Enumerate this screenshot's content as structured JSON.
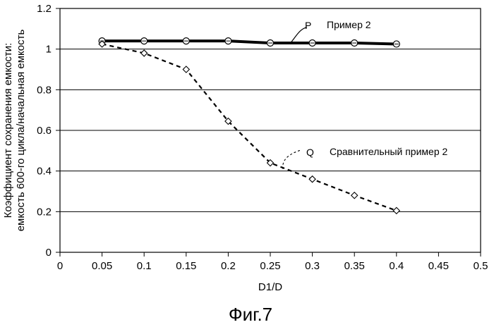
{
  "chart_data": {
    "type": "line",
    "xlabel": "D1/D",
    "ylabel_lines": [
      "Коэффициент сохранения емкости:",
      "емкость 600-го цикла/начальная емкость"
    ],
    "xlim": [
      0,
      0.5
    ],
    "ylim": [
      0,
      1.2
    ],
    "x_ticks": [
      "0",
      "0.05",
      "0.1",
      "0.15",
      "0.2",
      "0.25",
      "0.3",
      "0.35",
      "0.4",
      "0.45",
      "0.5"
    ],
    "y_ticks": [
      "0",
      "0.2",
      "0.4",
      "0.6",
      "0.8",
      "1",
      "1.2"
    ],
    "grid": "horizontal",
    "caption": "Фиг.7",
    "series": [
      {
        "name": "Пример 2",
        "tag": "P",
        "marker": "circle",
        "line_style": "solid-thick",
        "x": [
          0.05,
          0.1,
          0.15,
          0.2,
          0.25,
          0.3,
          0.35,
          0.4
        ],
        "y": [
          1.04,
          1.04,
          1.04,
          1.04,
          1.03,
          1.03,
          1.03,
          1.025
        ]
      },
      {
        "name": "Сравнительный пример 2",
        "tag": "Q",
        "marker": "diamond",
        "line_style": "dashed",
        "x": [
          0.05,
          0.1,
          0.15,
          0.2,
          0.25,
          0.3,
          0.35,
          0.4
        ],
        "y": [
          1.025,
          0.98,
          0.9,
          0.645,
          0.44,
          0.36,
          0.28,
          0.205
        ]
      }
    ]
  }
}
